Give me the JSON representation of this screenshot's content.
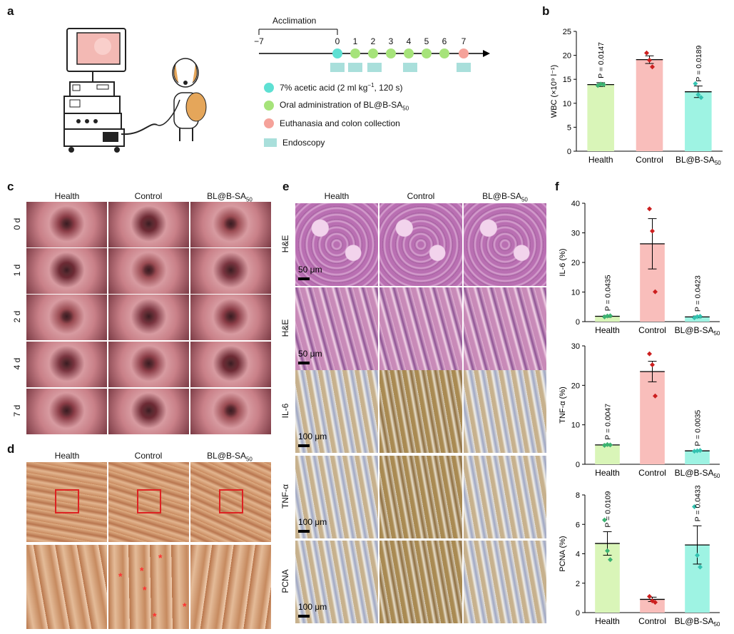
{
  "panel_letters": {
    "a": "a",
    "b": "b",
    "c": "c",
    "d": "d",
    "e": "e",
    "f": "f"
  },
  "timeline": {
    "acclimation": "Acclimation",
    "ticks": [
      "−7",
      "0",
      "1",
      "2",
      "3",
      "4",
      "5",
      "6",
      "7"
    ],
    "legend": [
      {
        "color": "#5ee0d3",
        "text": "7% acetic acid (2 ml kg",
        "sup": "−1",
        "tail": ", 120 s)"
      },
      {
        "color": "#a6e37a",
        "text": "Oral administration of BL@B-SA",
        "sub": "50"
      },
      {
        "color": "#f5a29a",
        "text": "Euthanasia and colon collection"
      },
      {
        "color": "#a9dfdb",
        "text": "Endoscopy"
      }
    ]
  },
  "groups": {
    "health": "Health",
    "control": "Control",
    "blb": "BL@B-SA",
    "blb_sub": "50"
  },
  "panel_c": {
    "rows": [
      "0 d",
      "1 d",
      "2 d",
      "4 d",
      "7 d"
    ]
  },
  "panel_e": {
    "rows": [
      "H&E",
      "H&E",
      "IL-6",
      "TNF-α",
      "PCNA"
    ],
    "scale_50": "50 μm",
    "scale_100": "100 μm"
  },
  "colors": {
    "health": "#d9f5b8",
    "control": "#f9bebb",
    "blb": "#9ef3e3",
    "health_dot": "#3cb371",
    "control_dot": "#cc1f1f",
    "blb_dot": "#33c2b0"
  },
  "chart_data": [
    {
      "id": "b",
      "type": "bar",
      "categories": [
        "Health",
        "Control",
        "BL@B-SA50"
      ],
      "values": [
        13.9,
        19.1,
        12.4
      ],
      "errors": [
        0.4,
        0.8,
        1.2
      ],
      "points": [
        [
          13.7,
          14.0,
          13.9
        ],
        [
          20.5,
          19.0,
          17.6
        ],
        [
          14.1,
          11.8,
          11.2
        ]
      ],
      "pvalues": [
        "P = 0.0147",
        "",
        "P = 0.0189"
      ],
      "ylabel": "WBC (×10⁹ l⁻¹)",
      "yticks": [
        0,
        5,
        10,
        15,
        20,
        25
      ],
      "ylim": [
        0,
        25
      ]
    },
    {
      "id": "f1",
      "type": "bar",
      "categories": [
        "Health",
        "Control",
        "BL@B-SA50"
      ],
      "values": [
        1.8,
        26.3,
        1.6
      ],
      "errors": [
        0.3,
        8.5,
        0.3
      ],
      "points": [
        [
          1.6,
          1.9,
          2.0
        ],
        [
          38.1,
          30.6,
          10.1
        ],
        [
          1.3,
          1.7,
          1.8
        ]
      ],
      "pvalues": [
        "P = 0.0435",
        "",
        "P = 0.0423"
      ],
      "ylabel": "IL-6 (%)",
      "yticks": [
        0,
        10,
        20,
        30,
        40
      ],
      "ylim": [
        0,
        40
      ]
    },
    {
      "id": "f2",
      "type": "bar",
      "categories": [
        "Health",
        "Control",
        "BL@B-SA50"
      ],
      "values": [
        4.9,
        23.5,
        3.4
      ],
      "errors": [
        0.2,
        2.6,
        0.1
      ],
      "points": [
        [
          4.8,
          5.0,
          4.9
        ],
        [
          28.0,
          25.2,
          17.3
        ],
        [
          3.3,
          3.4,
          3.5
        ]
      ],
      "pvalues": [
        "P = 0.0047",
        "",
        "P = 0.0035"
      ],
      "ylabel": "TNF-α (%)",
      "yticks": [
        0,
        10,
        20,
        30
      ],
      "ylim": [
        0,
        30
      ]
    },
    {
      "id": "f3",
      "type": "bar",
      "categories": [
        "Health",
        "Control",
        "BL@B-SA50"
      ],
      "values": [
        4.7,
        0.9,
        4.6
      ],
      "errors": [
        0.8,
        0.15,
        1.3
      ],
      "points": [
        [
          6.3,
          4.2,
          3.6
        ],
        [
          1.1,
          0.8,
          0.7
        ],
        [
          7.2,
          3.9,
          3.1
        ]
      ],
      "pvalues": [
        "P = 0.0109",
        "",
        "P = 0.0433"
      ],
      "ylabel": "PCNA (%)",
      "yticks": [
        0,
        2,
        4,
        6,
        8
      ],
      "ylim": [
        0,
        8
      ]
    }
  ]
}
